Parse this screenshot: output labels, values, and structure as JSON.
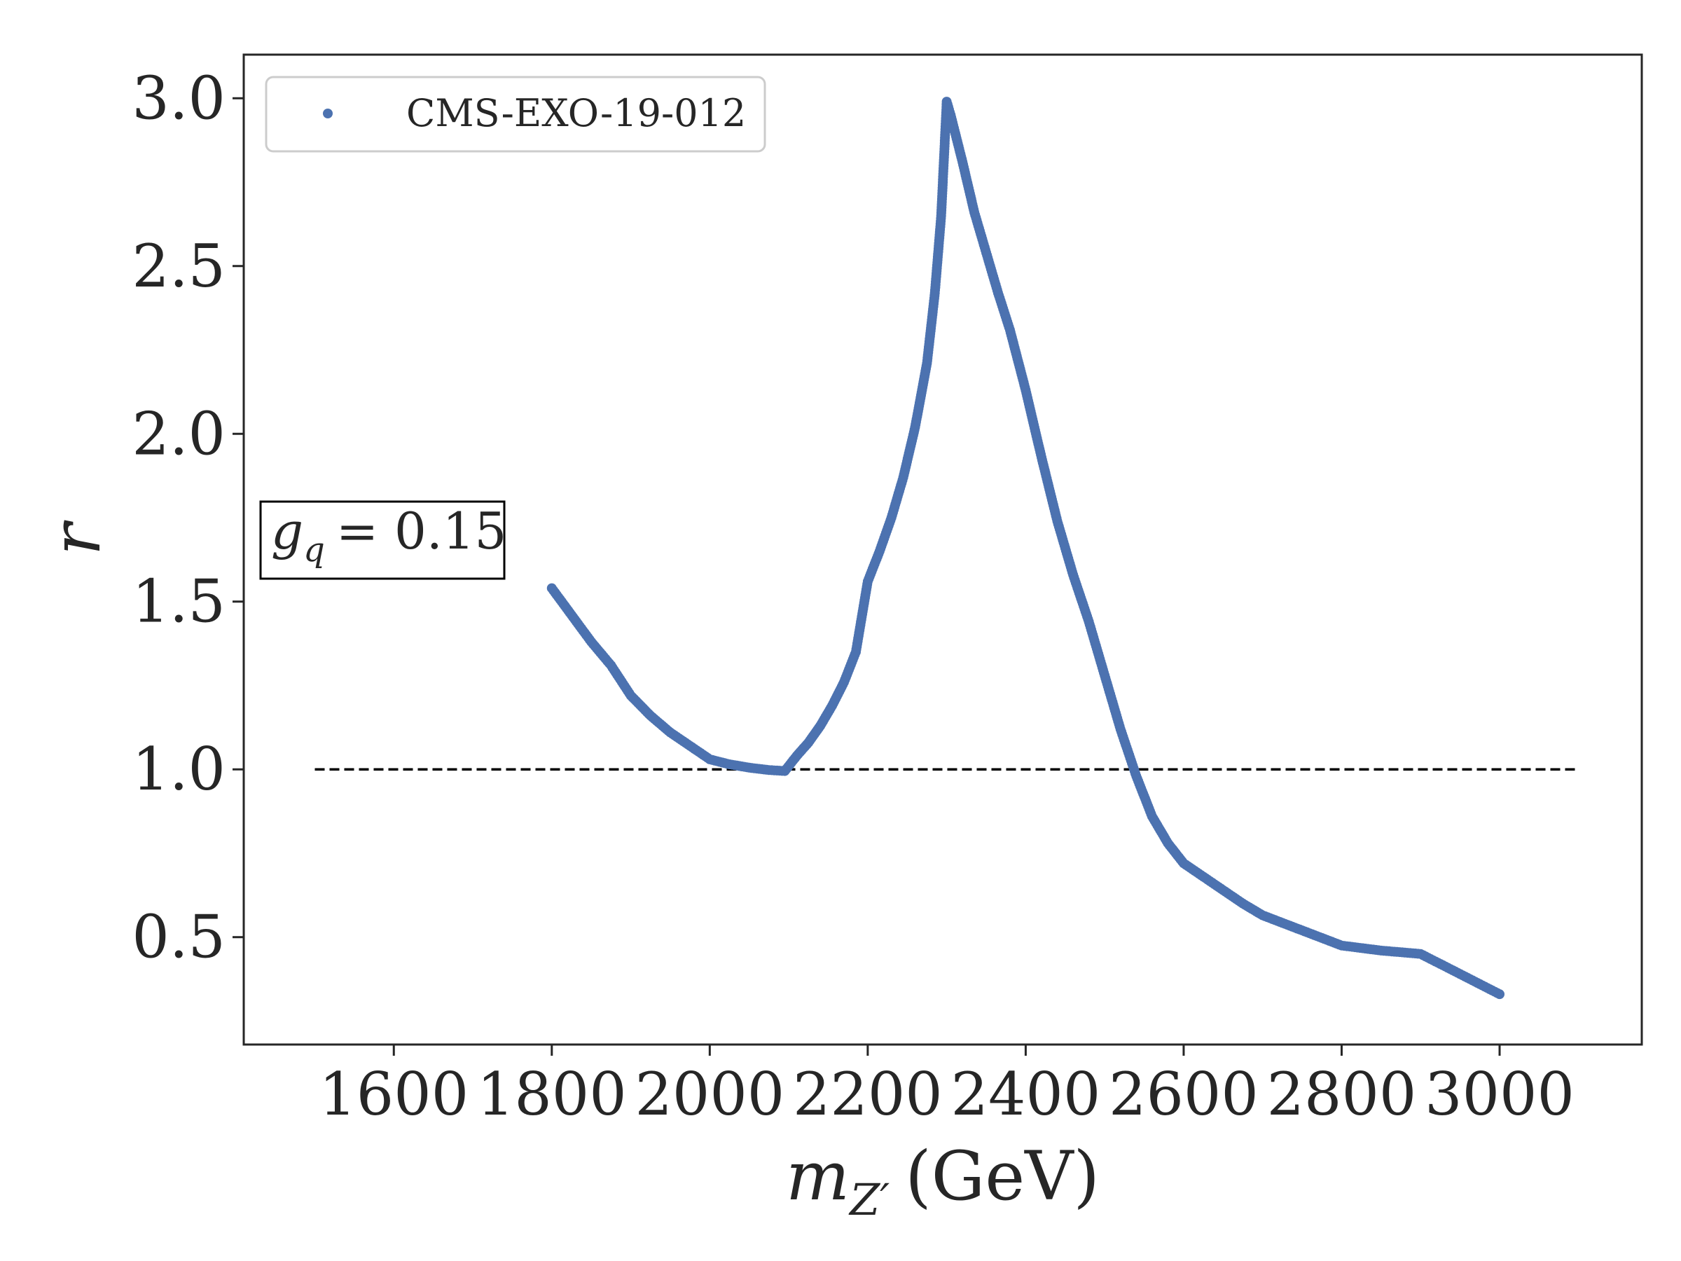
{
  "chart_data": {
    "type": "scatter",
    "xlabel": "m",
    "xlabel_sub": "Z′",
    "xlabel_unit": "(GeV)",
    "ylabel": "r",
    "xlim": [
      1410,
      3180
    ],
    "ylim": [
      0.18,
      3.13
    ],
    "xticks": [
      1600,
      1800,
      2000,
      2200,
      2400,
      2600,
      2800,
      3000
    ],
    "yticks": [
      0.5,
      1.0,
      1.5,
      2.0,
      2.5,
      3.0
    ],
    "xtick_labels": [
      "1600",
      "1800",
      "2000",
      "2200",
      "2400",
      "2600",
      "2800",
      "3000"
    ],
    "ytick_labels": [
      "0.5",
      "1.0",
      "1.5",
      "2.0",
      "2.5",
      "3.0"
    ],
    "grid": false,
    "legend_position": "top-left",
    "series": [
      {
        "name": "CMS-EXO-19-012",
        "color": "#4c72b0",
        "points": [
          [
            1800,
            1.54
          ],
          [
            1825,
            1.46
          ],
          [
            1850,
            1.38
          ],
          [
            1875,
            1.31
          ],
          [
            1900,
            1.22
          ],
          [
            1925,
            1.16
          ],
          [
            1950,
            1.11
          ],
          [
            1975,
            1.07
          ],
          [
            2000,
            1.03
          ],
          [
            2025,
            1.015
          ],
          [
            2050,
            1.005
          ],
          [
            2075,
            0.998
          ],
          [
            2095,
            0.995
          ],
          [
            2110,
            1.04
          ],
          [
            2125,
            1.08
          ],
          [
            2140,
            1.13
          ],
          [
            2155,
            1.19
          ],
          [
            2170,
            1.26
          ],
          [
            2185,
            1.35
          ],
          [
            2200,
            1.56
          ],
          [
            2215,
            1.65
          ],
          [
            2230,
            1.75
          ],
          [
            2245,
            1.87
          ],
          [
            2260,
            2.02
          ],
          [
            2275,
            2.21
          ],
          [
            2285,
            2.42
          ],
          [
            2293,
            2.65
          ],
          [
            2300,
            2.99
          ],
          [
            2305,
            2.95
          ],
          [
            2320,
            2.81
          ],
          [
            2335,
            2.66
          ],
          [
            2350,
            2.54
          ],
          [
            2365,
            2.42
          ],
          [
            2380,
            2.31
          ],
          [
            2400,
            2.13
          ],
          [
            2420,
            1.93
          ],
          [
            2440,
            1.74
          ],
          [
            2460,
            1.58
          ],
          [
            2480,
            1.44
          ],
          [
            2500,
            1.28
          ],
          [
            2520,
            1.12
          ],
          [
            2540,
            0.98
          ],
          [
            2560,
            0.86
          ],
          [
            2580,
            0.78
          ],
          [
            2600,
            0.72
          ],
          [
            2625,
            0.68
          ],
          [
            2650,
            0.64
          ],
          [
            2675,
            0.6
          ],
          [
            2700,
            0.565
          ],
          [
            2750,
            0.52
          ],
          [
            2800,
            0.475
          ],
          [
            2850,
            0.46
          ],
          [
            2900,
            0.45
          ],
          [
            2925,
            0.42
          ],
          [
            2950,
            0.39
          ],
          [
            2975,
            0.36
          ],
          [
            3000,
            0.33
          ]
        ]
      }
    ],
    "reference_line": {
      "y": 1.0,
      "x_range": [
        1500,
        3100
      ],
      "style": "dashed",
      "color": "#000000"
    },
    "annotation": {
      "var": "g",
      "var_sub": "q",
      "text": "= 0.15",
      "x": 1500,
      "y": 1.66
    }
  }
}
